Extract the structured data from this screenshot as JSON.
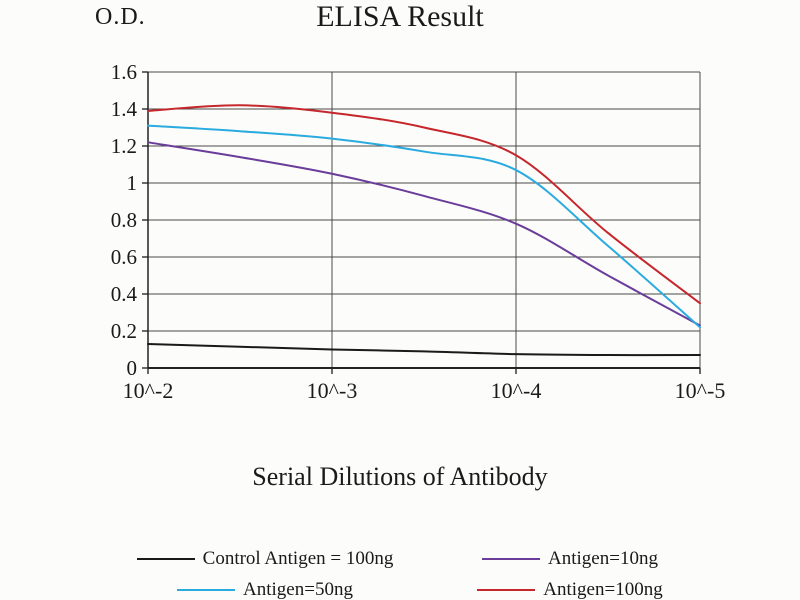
{
  "chart_data": {
    "type": "line",
    "title": "ELISA Result",
    "ylabel": "O.D.",
    "xlabel": "Serial Dilutions of Antibody",
    "x_tick_labels": [
      "10^-2",
      "10^-3",
      "10^-4",
      "10^-5"
    ],
    "x_tick_exponents": [
      2,
      3,
      4,
      5
    ],
    "y_tick_labels": [
      "0",
      "0.2",
      "0.4",
      "0.6",
      "0.8",
      "1",
      "1.2",
      "1.4",
      "1.6"
    ],
    "y_ticks": [
      0,
      0.2,
      0.4,
      0.6,
      0.8,
      1.0,
      1.2,
      1.4,
      1.6
    ],
    "ylim": [
      0,
      1.6
    ],
    "grid": true,
    "legend_position": "bottom",
    "x_exponents": [
      2,
      2.5,
      3,
      3.5,
      4,
      4.5,
      5
    ],
    "series": [
      {
        "name": "Control Antigen = 100ng",
        "color": "#1a1a1a",
        "values": [
          0.13,
          0.115,
          0.1,
          0.09,
          0.075,
          0.07,
          0.07
        ]
      },
      {
        "name": "Antigen=10ng",
        "color": "#6a3d9a",
        "values": [
          1.22,
          1.14,
          1.05,
          0.93,
          0.78,
          0.5,
          0.23
        ]
      },
      {
        "name": "Antigen=50ng",
        "color": "#2aabdf",
        "values": [
          1.31,
          1.28,
          1.24,
          1.17,
          1.07,
          0.66,
          0.22
        ]
      },
      {
        "name": "Antigen=100ng",
        "color": "#c5272d",
        "values": [
          1.39,
          1.42,
          1.38,
          1.3,
          1.15,
          0.73,
          0.35
        ]
      }
    ],
    "axis_color": "#3a3a3a",
    "grid_color": "#4a4a4a"
  }
}
